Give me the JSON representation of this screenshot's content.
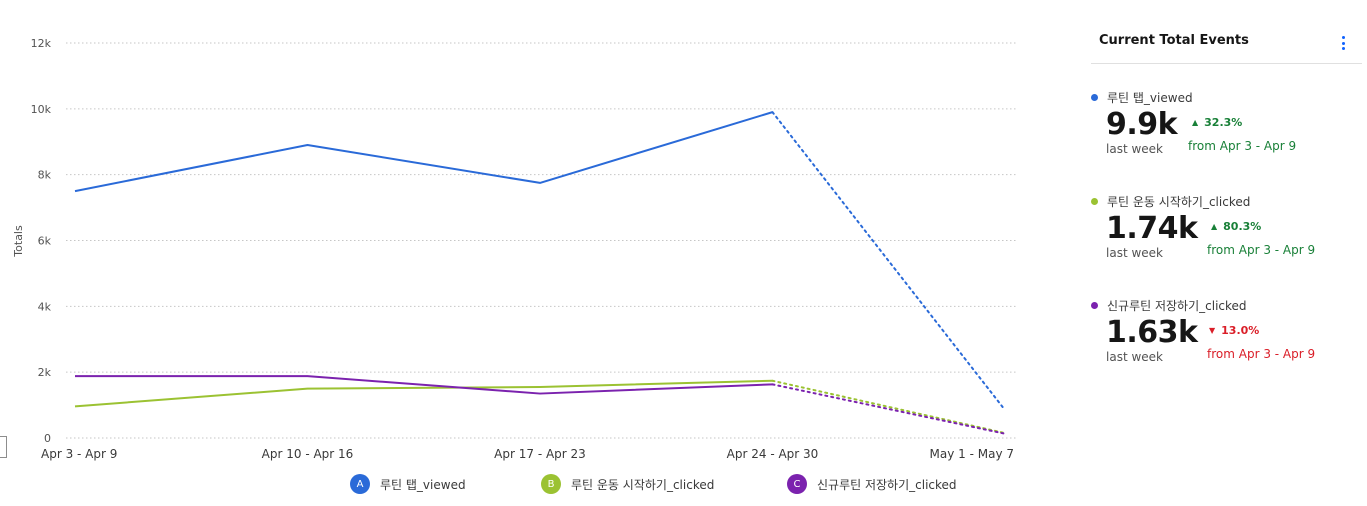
{
  "chart_data": {
    "type": "line",
    "categories": [
      "Apr 3 - Apr 9",
      "Apr 10 - Apr 16",
      "Apr 17 - Apr 23",
      "Apr 24 - Apr 30",
      "May 1 - May 7"
    ],
    "ylabel": "Totals",
    "ylim": [
      0,
      12000
    ],
    "y_ticks": [
      {
        "value": 0,
        "label": "0"
      },
      {
        "value": 2000,
        "label": "2k"
      },
      {
        "value": 4000,
        "label": "4k"
      },
      {
        "value": 6000,
        "label": "6k"
      },
      {
        "value": 8000,
        "label": "8k"
      },
      {
        "value": 10000,
        "label": "10k"
      },
      {
        "value": 12000,
        "label": "12k"
      }
    ],
    "grid": "horizontal-dotted",
    "last_segment_style": "dotted",
    "series": [
      {
        "name": "루틴 탭_viewed",
        "badge": "A",
        "color": "#2a6ad8",
        "values": [
          7500,
          8900,
          7750,
          9900,
          850
        ]
      },
      {
        "name": "루틴 운동 시작하기_clicked",
        "badge": "B",
        "color": "#9bc232",
        "values": [
          960,
          1500,
          1550,
          1740,
          150
        ]
      },
      {
        "name": "신규루틴 저장하기_clicked",
        "badge": "C",
        "color": "#7b22ae",
        "values": [
          1880,
          1880,
          1350,
          1630,
          130
        ]
      }
    ],
    "legend_position": "bottom"
  },
  "panel": {
    "title": "Current Total Events",
    "metrics": [
      {
        "name": "루틴 탭_viewed",
        "color": "#2a6ad8",
        "value": "9.9k",
        "period": "last week",
        "change": "32.3%",
        "direction": "up",
        "compare": "from Apr 3 - Apr 9"
      },
      {
        "name": "루틴 운동 시작하기_clicked",
        "color": "#9bc232",
        "value": "1.74k",
        "period": "last week",
        "change": "80.3%",
        "direction": "up",
        "compare": "from Apr 3 - Apr 9"
      },
      {
        "name": "신규루틴 저장하기_clicked",
        "color": "#7b22ae",
        "value": "1.63k",
        "period": "last week",
        "change": "13.0%",
        "direction": "down",
        "compare": "from Apr 3 - Apr 9"
      }
    ]
  },
  "icons": {
    "panel_menu": "overflow-menu-vertical-icon",
    "trend_up": "caret-up-icon",
    "trend_down": "caret-down-icon"
  }
}
